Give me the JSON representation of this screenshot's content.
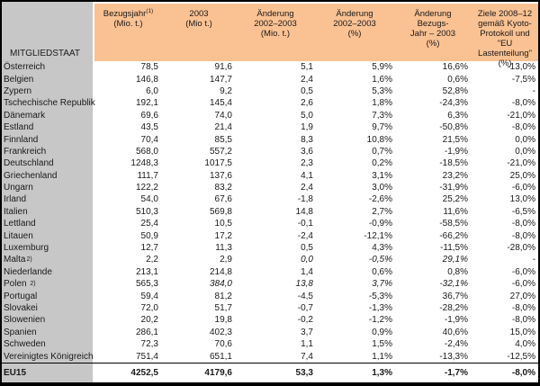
{
  "chart_data": {
    "type": "table",
    "corner_label": "MITGLIEDSTAAT",
    "columns": [
      {
        "lines": [
          "Bezugsjahr",
          "(Mio. t.)"
        ],
        "sup": "(1)"
      },
      {
        "lines": [
          "2003",
          "(Mio t.)"
        ]
      },
      {
        "lines": [
          "Änderung",
          "2002–2003",
          "(Mio. t.)"
        ]
      },
      {
        "lines": [
          "Änderung",
          "2002–2003",
          "(%)"
        ]
      },
      {
        "lines": [
          "Änderung",
          "Bezugs-",
          "Jahr – 2003",
          "(%)"
        ]
      },
      {
        "lines": [
          "Ziele 2008–12",
          "gemäß Kyoto-",
          "Protokoll und \"EU",
          "Lastenteilung\"",
          "(%)"
        ]
      }
    ],
    "rows": [
      {
        "name": "Österreich",
        "values": [
          "78,5",
          "91,6",
          "5,1",
          "5,9%",
          "16,6%",
          "-13,0%"
        ]
      },
      {
        "name": "Belgien",
        "values": [
          "146,8",
          "147,7",
          "2,4",
          "1,6%",
          "0,6%",
          "-7,5%"
        ]
      },
      {
        "name": "Zypern",
        "values": [
          "6,0",
          "9,2",
          "0,5",
          "5,3%",
          "52,8%",
          "-"
        ]
      },
      {
        "name": "Tschechische Republik",
        "values": [
          "192,1",
          "145,4",
          "2,6",
          "1,8%",
          "-24,3%",
          "-8,0%"
        ]
      },
      {
        "name": "Dänemark",
        "values": [
          "69,6",
          "74,0",
          "5,0",
          "7,3%",
          "6,3%",
          "-21,0%"
        ]
      },
      {
        "name": "Estland",
        "values": [
          "43,5",
          "21,4",
          "1,9",
          "9,7%",
          "-50,8%",
          "-8,0%"
        ]
      },
      {
        "name": "Finnland",
        "values": [
          "70,4",
          "85,5",
          "8,3",
          "10,8%",
          "21,5%",
          "0,0%"
        ]
      },
      {
        "name": "Frankreich",
        "values": [
          "568,0",
          "557,2",
          "3,6",
          "0,7%",
          "-1,9%",
          "0,0%"
        ]
      },
      {
        "name": "Deutschland",
        "values": [
          "1248,3",
          "1017,5",
          "2,3",
          "0,2%",
          "-18,5%",
          "-21,0%"
        ]
      },
      {
        "name": "Griechenland",
        "values": [
          "111,7",
          "137,6",
          "4,1",
          "3,1%",
          "23,2%",
          "25,0%"
        ]
      },
      {
        "name": "Ungarn",
        "values": [
          "122,2",
          "83,2",
          "2,4",
          "3,0%",
          "-31,9%",
          "-6,0%"
        ]
      },
      {
        "name": "Irland",
        "values": [
          "54,0",
          "67,6",
          "-1,8",
          "-2,6%",
          "25,2%",
          "13,0%"
        ]
      },
      {
        "name": "Italien",
        "values": [
          "510,3",
          "569,8",
          "14,8",
          "2,7%",
          "11,6%",
          "-6,5%"
        ]
      },
      {
        "name": "Lettland",
        "values": [
          "25,4",
          "10,5",
          "-0,1",
          "-0,9%",
          "-58,5%",
          "-8,0%"
        ]
      },
      {
        "name": "Litauen",
        "values": [
          "50,9",
          "17,2",
          "-2,4",
          "-12,1%",
          "-66,2%",
          "-8,0%"
        ]
      },
      {
        "name": "Luxemburg",
        "values": [
          "12,7",
          "11,3",
          "0,5",
          "4,3%",
          "-11,5%",
          "-28,0%"
        ]
      },
      {
        "name": "Malta",
        "sup": "2)",
        "values": [
          "2,2",
          "2,9",
          "0,0",
          "-0,5%",
          "29,1%",
          "-"
        ],
        "italic": [
          2,
          3,
          4
        ]
      },
      {
        "name": "Niederlande",
        "values": [
          "213,1",
          "214,8",
          "1,4",
          "0,6%",
          "0,8%",
          "-6,0%"
        ]
      },
      {
        "name": "Polen ",
        "sup": "2)",
        "values": [
          "565,3",
          "384,0",
          "13,8",
          "3,7%",
          "-32,1%",
          "-6,0%"
        ],
        "italic": [
          1,
          2,
          3,
          4
        ]
      },
      {
        "name": "Portugal",
        "values": [
          "59,4",
          "81,2",
          "-4,5",
          "-5,3%",
          "36,7%",
          "27,0%"
        ]
      },
      {
        "name": "Slovakei",
        "values": [
          "72,0",
          "51,7",
          "-0,7",
          "-1,3%",
          "-28,2%",
          "-8,0%"
        ]
      },
      {
        "name": "Slowenien",
        "values": [
          "20,2",
          "19,8",
          "-0,2",
          "-1,2%",
          "-1,9%",
          "-8,0%"
        ]
      },
      {
        "name": "Spanien",
        "values": [
          "286,1",
          "402,3",
          "3,7",
          "0,9%",
          "40,6%",
          "15,0%"
        ]
      },
      {
        "name": "Schweden",
        "values": [
          "72,3",
          "70,6",
          "1,1",
          "1,5%",
          "-2,4%",
          "4,0%"
        ]
      },
      {
        "name": "Vereinigtes Königreich",
        "values": [
          "751,4",
          "651,1",
          "7,4",
          "1,1%",
          "-13,3%",
          "-12,5%"
        ]
      }
    ],
    "total": {
      "name": "EU15",
      "values": [
        "4252,5",
        "4179,6",
        "53,3",
        "1,3%",
        "-1,7%",
        "-8,0%"
      ]
    }
  },
  "colors": {
    "orange_header_fill": "#FAC192",
    "gray_name_column_fill": "#C7C7C7",
    "border": "#000000",
    "text": "#1A1A1A"
  }
}
